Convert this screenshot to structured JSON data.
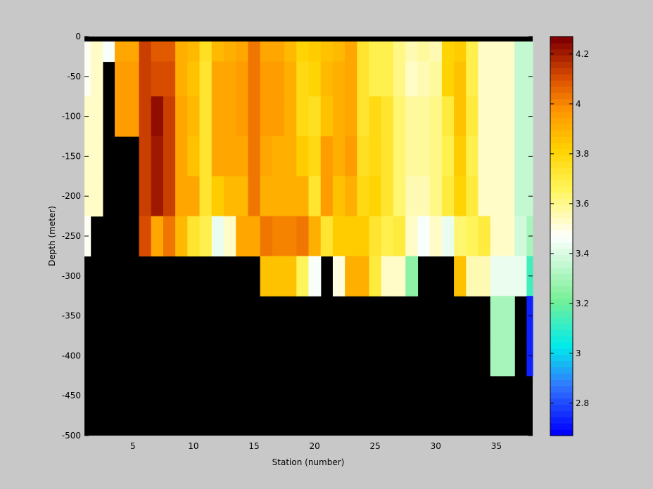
{
  "figure": {
    "background": "#c8c8c8"
  },
  "chart_data": {
    "type": "heatmap",
    "title": "",
    "xlabel": "Station (number)",
    "ylabel": "Depth (meter)",
    "xlim": [
      1,
      38
    ],
    "ylim": [
      -500,
      0
    ],
    "x_ticks": [
      5,
      10,
      15,
      20,
      25,
      30,
      35
    ],
    "y_ticks": [
      0,
      -50,
      -100,
      -150,
      -200,
      -250,
      -300,
      -350,
      -400,
      -450,
      -500
    ],
    "colorbar": {
      "range": [
        2.67,
        4.27
      ],
      "ticks": [
        2.8,
        3,
        3.2,
        3.4,
        3.6,
        3.8,
        4,
        4.2
      ],
      "levels": 64,
      "colormap": "blue-cyan-green-white-yellow-orange-darkred"
    },
    "missing_color": "#000000",
    "depth_levels": [
      0,
      -12.5,
      -50,
      -100,
      -150,
      -200,
      -250,
      -300,
      -350,
      -400,
      -450,
      -500
    ],
    "stations": [
      1,
      2,
      3,
      4,
      5,
      6,
      7,
      8,
      9,
      10,
      11,
      12,
      13,
      14,
      15,
      16,
      17,
      18,
      19,
      20,
      21,
      22,
      23,
      24,
      25,
      26,
      27,
      28,
      29,
      30,
      31,
      32,
      33,
      34,
      35,
      36,
      37,
      38
    ],
    "max_depth": [
      -250,
      -250,
      -75,
      -150,
      -150,
      -250,
      -250,
      -250,
      -250,
      -250,
      -250,
      -250,
      -250,
      -250,
      -250,
      -300,
      -300,
      -300,
      -300,
      -300,
      -300,
      -300,
      -300,
      -300,
      -300,
      -300,
      -300,
      -250,
      -250,
      -300,
      -300,
      -300,
      -300,
      -300,
      -400,
      -400,
      -300,
      -400
    ],
    "temperature": [
      [
        null,
        null,
        null,
        null,
        null,
        null,
        null,
        null,
        null,
        null,
        null,
        null,
        null,
        null,
        null,
        null,
        null,
        null,
        null,
        null,
        null,
        null,
        null,
        null,
        null,
        null,
        null,
        null,
        null,
        null,
        null,
        null,
        null,
        null,
        null,
        null,
        null,
        null
      ],
      [
        3.47,
        3.52,
        3.45,
        3.93,
        3.93,
        4.12,
        4.08,
        4.08,
        3.9,
        3.87,
        3.75,
        3.87,
        3.9,
        3.93,
        4.03,
        3.93,
        3.93,
        3.87,
        3.8,
        3.82,
        3.85,
        3.87,
        3.92,
        3.74,
        3.69,
        3.69,
        3.6,
        3.56,
        3.58,
        3.56,
        3.8,
        3.83,
        3.67,
        3.52,
        3.52,
        3.52,
        3.35,
        3.35
      ],
      [
        3.49,
        3.52,
        null,
        3.95,
        3.95,
        4.12,
        4.1,
        4.1,
        3.9,
        3.86,
        3.74,
        3.93,
        3.92,
        3.95,
        4.03,
        3.95,
        3.95,
        3.9,
        3.78,
        3.8,
        3.87,
        3.9,
        3.94,
        3.72,
        3.68,
        3.69,
        3.6,
        3.54,
        3.56,
        3.58,
        3.8,
        3.86,
        3.67,
        3.52,
        3.52,
        3.52,
        3.35,
        3.35
      ],
      [
        3.52,
        3.52,
        null,
        3.95,
        3.95,
        4.14,
        4.23,
        4.14,
        3.92,
        3.88,
        3.72,
        3.92,
        3.92,
        3.95,
        4.03,
        3.95,
        3.95,
        3.9,
        3.78,
        3.75,
        3.86,
        3.9,
        3.92,
        3.72,
        3.78,
        3.72,
        3.62,
        3.57,
        3.57,
        3.6,
        3.7,
        3.86,
        3.7,
        3.52,
        3.52,
        3.52,
        3.35,
        3.35
      ],
      [
        3.52,
        3.52,
        null,
        null,
        null,
        4.14,
        4.2,
        4.12,
        3.92,
        3.86,
        3.72,
        3.92,
        3.92,
        3.92,
        4.03,
        3.94,
        3.9,
        3.9,
        3.84,
        3.78,
        3.96,
        3.9,
        3.95,
        3.75,
        3.78,
        3.72,
        3.62,
        3.57,
        3.57,
        3.6,
        3.67,
        3.84,
        3.68,
        3.52,
        3.52,
        3.52,
        3.35,
        3.35
      ],
      [
        3.52,
        3.52,
        null,
        null,
        null,
        4.14,
        4.2,
        4.12,
        3.92,
        3.92,
        3.72,
        3.84,
        3.88,
        3.88,
        4.03,
        3.9,
        3.9,
        3.9,
        3.9,
        3.72,
        3.96,
        3.85,
        3.9,
        3.77,
        3.8,
        3.72,
        3.62,
        3.56,
        3.56,
        3.6,
        3.7,
        3.8,
        3.7,
        3.52,
        3.52,
        3.52,
        3.35,
        3.35
      ],
      [
        3.47,
        null,
        null,
        null,
        null,
        4.1,
        3.92,
        4.03,
        3.88,
        3.74,
        3.67,
        3.42,
        3.52,
        3.93,
        3.93,
        4.03,
        4.0,
        4.0,
        4.03,
        3.9,
        3.73,
        3.84,
        3.84,
        3.84,
        3.73,
        3.67,
        3.7,
        3.52,
        3.46,
        3.52,
        3.42,
        3.63,
        3.66,
        3.7,
        3.52,
        3.52,
        3.38,
        3.3
      ],
      [
        null,
        null,
        null,
        null,
        null,
        null,
        null,
        null,
        null,
        null,
        null,
        null,
        null,
        null,
        null,
        3.85,
        3.85,
        3.85,
        3.65,
        3.45,
        null,
        3.5,
        3.9,
        3.9,
        3.7,
        3.52,
        3.52,
        3.25,
        null,
        null,
        null,
        3.86,
        3.56,
        3.56,
        3.42,
        3.42,
        3.42,
        3.12
      ],
      [
        null,
        null,
        null,
        null,
        null,
        null,
        null,
        null,
        null,
        null,
        null,
        null,
        null,
        null,
        null,
        null,
        null,
        null,
        null,
        null,
        null,
        null,
        null,
        null,
        null,
        null,
        null,
        null,
        null,
        null,
        null,
        null,
        null,
        null,
        3.3,
        3.3,
        null,
        2.72
      ],
      [
        null,
        null,
        null,
        null,
        null,
        null,
        null,
        null,
        null,
        null,
        null,
        null,
        null,
        null,
        null,
        null,
        null,
        null,
        null,
        null,
        null,
        null,
        null,
        null,
        null,
        null,
        null,
        null,
        null,
        null,
        null,
        null,
        null,
        null,
        3.3,
        3.3,
        null,
        2.72
      ],
      [
        null,
        null,
        null,
        null,
        null,
        null,
        null,
        null,
        null,
        null,
        null,
        null,
        null,
        null,
        null,
        null,
        null,
        null,
        null,
        null,
        null,
        null,
        null,
        null,
        null,
        null,
        null,
        null,
        null,
        null,
        null,
        null,
        null,
        null,
        null,
        null,
        null,
        null
      ],
      [
        null,
        null,
        null,
        null,
        null,
        null,
        null,
        null,
        null,
        null,
        null,
        null,
        null,
        null,
        null,
        null,
        null,
        null,
        null,
        null,
        null,
        null,
        null,
        null,
        null,
        null,
        null,
        null,
        null,
        null,
        null,
        null,
        null,
        null,
        null,
        null,
        null,
        null
      ]
    ]
  }
}
